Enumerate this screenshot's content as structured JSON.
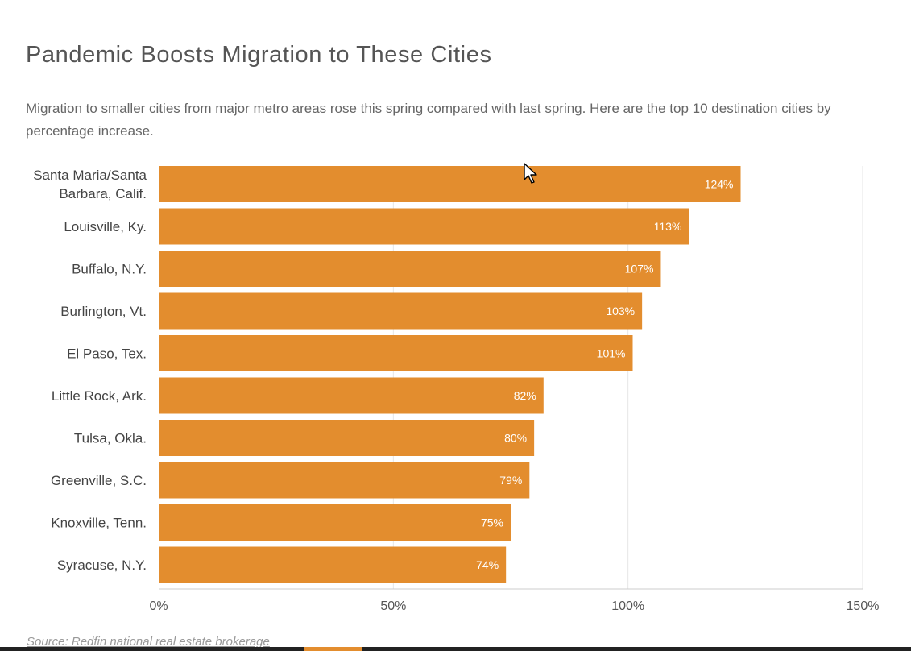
{
  "title": "Pandemic Boosts Migration to These Cities",
  "subtitle": "Migration to smaller cities from major metro areas rose this spring compared with last spring. Here are the top 10 destination cities by percentage increase.",
  "source": "Source: Redfin national real estate brokerage",
  "colors": {
    "bar": "#e38d2e",
    "bar_label": "#ffffff",
    "category_label": "#444444",
    "tick_label": "#555555",
    "gridline": "#e6e6e6"
  },
  "chart_data": {
    "type": "bar",
    "orientation": "horizontal",
    "categories": [
      "Santa Maria/Santa Barbara, Calif.",
      "Louisville, Ky.",
      "Buffalo, N.Y.",
      "Burlington, Vt.",
      "El Paso, Tex.",
      "Little Rock, Ark.",
      "Tulsa, Okla.",
      "Greenville, S.C.",
      "Knoxville, Tenn.",
      "Syracuse, N.Y."
    ],
    "category_lines": [
      [
        "Santa Maria/Santa",
        "Barbara, Calif."
      ],
      [
        "Louisville, Ky."
      ],
      [
        "Buffalo, N.Y."
      ],
      [
        "Burlington, Vt."
      ],
      [
        "El Paso, Tex."
      ],
      [
        "Little Rock, Ark."
      ],
      [
        "Tulsa, Okla."
      ],
      [
        "Greenville, S.C."
      ],
      [
        "Knoxville, Tenn."
      ],
      [
        "Syracuse, N.Y."
      ]
    ],
    "values": [
      124,
      113,
      107,
      103,
      101,
      82,
      80,
      79,
      75,
      74
    ],
    "value_labels": [
      "124%",
      "113%",
      "107%",
      "103%",
      "101%",
      "82%",
      "80%",
      "79%",
      "75%",
      "74%"
    ],
    "xlim": [
      0,
      150
    ],
    "xticks": [
      0,
      50,
      100,
      150
    ],
    "xtick_labels": [
      "0%",
      "50%",
      "100%",
      "150%"
    ],
    "grid": true
  }
}
